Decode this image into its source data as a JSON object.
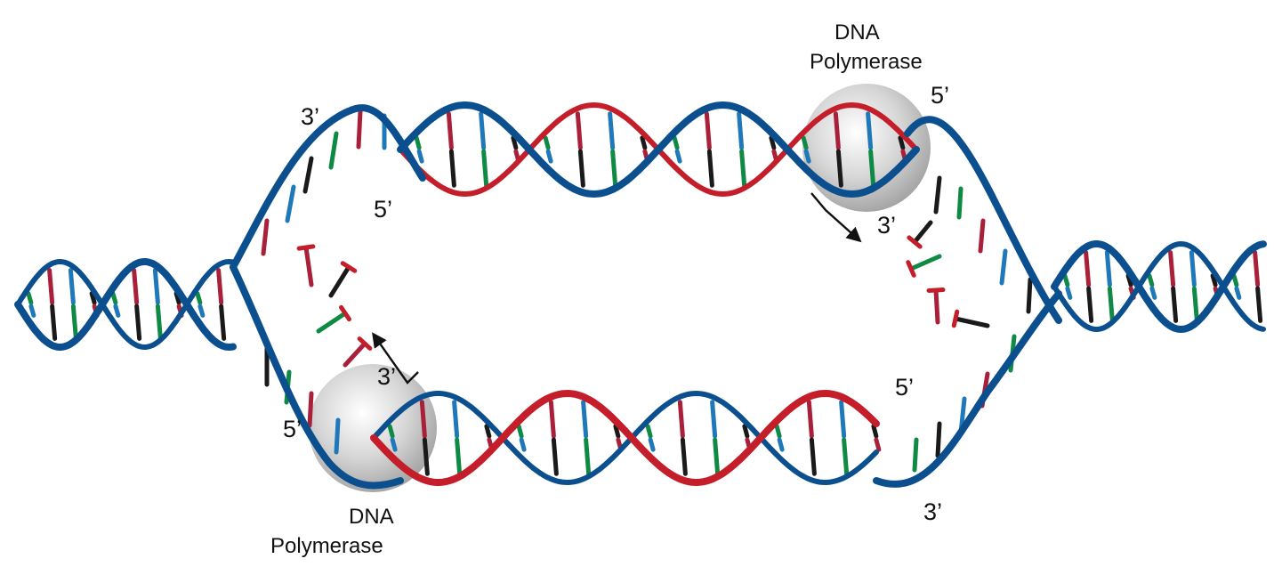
{
  "colors": {
    "template_strand": "#0b4f8f",
    "new_strand": "#c41e2a",
    "base_a": "#0f8a45",
    "base_b": "#a8203a",
    "base_c": "#1f78b9",
    "base_d": "#1a1a1a",
    "enzyme_fill": "#b8b8b8",
    "arrow": "#111111"
  },
  "labels": {
    "top_left_3prime": "3’",
    "top_left_5prime": "5’",
    "top_right_5prime": "5’",
    "top_right_3prime": "3’",
    "bottom_left_5prime": "5’",
    "bottom_left_3prime": "3’",
    "bottom_right_5prime": "5’",
    "bottom_right_3prime": "3’"
  },
  "enzymes": {
    "top": {
      "name_line1": "DNA",
      "name_line2": "Polymerase"
    },
    "bottom": {
      "name_line1": "DNA",
      "name_line2": "Polymerase"
    }
  },
  "icons": {
    "top_direction_arrow": "arrow-down-right-icon",
    "bottom_direction_arrow": "arrow-up-left-icon"
  }
}
